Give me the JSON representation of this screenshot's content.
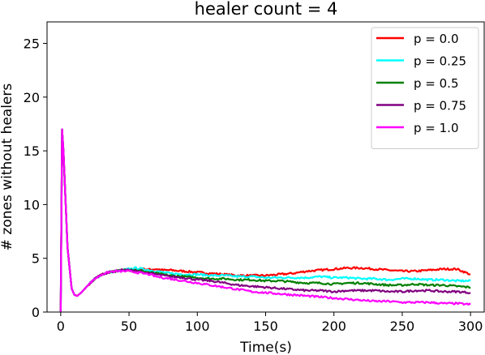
{
  "chart_data": {
    "type": "line",
    "title": "healer count = 4",
    "xlabel": "Time(s)",
    "ylabel": "# zones without healers",
    "xlim": [
      -10,
      310
    ],
    "ylim": [
      0,
      27
    ],
    "xticks": [
      "0",
      "50",
      "100",
      "150",
      "200",
      "250",
      "300"
    ],
    "yticks": [
      "0",
      "5",
      "10",
      "15",
      "20",
      "25"
    ],
    "grid": false,
    "legend_position": "top-right",
    "series": [
      {
        "name": "p = 0.0",
        "color": "#ff0000",
        "x": [
          0,
          1,
          2,
          5,
          8,
          10,
          12,
          15,
          20,
          25,
          30,
          35,
          40,
          45,
          50,
          55,
          60,
          65,
          70,
          75,
          80,
          90,
          100,
          110,
          120,
          130,
          140,
          150,
          160,
          170,
          180,
          190,
          200,
          210,
          220,
          230,
          240,
          250,
          260,
          270,
          280,
          290,
          300
        ],
        "values": [
          0,
          17,
          15,
          6,
          2.2,
          1.6,
          1.5,
          1.8,
          2.5,
          3.1,
          3.5,
          3.7,
          3.8,
          3.9,
          3.9,
          3.9,
          4.0,
          3.95,
          4.0,
          3.9,
          3.9,
          3.8,
          3.7,
          3.6,
          3.5,
          3.4,
          3.4,
          3.4,
          3.5,
          3.6,
          3.8,
          3.9,
          4.0,
          4.1,
          4.1,
          4.0,
          3.9,
          3.8,
          3.8,
          3.9,
          4.0,
          4.0,
          3.5
        ]
      },
      {
        "name": "p = 0.25",
        "color": "#00ffff",
        "x": [
          0,
          1,
          2,
          5,
          8,
          10,
          12,
          15,
          20,
          25,
          30,
          35,
          40,
          45,
          50,
          55,
          60,
          65,
          70,
          75,
          80,
          90,
          100,
          110,
          120,
          130,
          140,
          150,
          160,
          170,
          180,
          190,
          200,
          210,
          220,
          230,
          240,
          250,
          260,
          270,
          280,
          290,
          300
        ],
        "values": [
          0,
          17,
          15,
          6,
          2.2,
          1.6,
          1.5,
          1.8,
          2.5,
          3.1,
          3.5,
          3.7,
          3.8,
          3.9,
          4.0,
          4.1,
          4.0,
          3.9,
          3.8,
          3.7,
          3.6,
          3.5,
          3.5,
          3.4,
          3.4,
          3.3,
          3.3,
          3.2,
          3.2,
          3.2,
          3.2,
          3.3,
          3.2,
          3.2,
          3.1,
          3.1,
          3.0,
          3.1,
          3.1,
          3.0,
          3.0,
          2.9,
          2.9
        ]
      },
      {
        "name": "p = 0.5",
        "color": "#008000",
        "x": [
          0,
          1,
          2,
          5,
          8,
          10,
          12,
          15,
          20,
          25,
          30,
          35,
          40,
          45,
          50,
          55,
          60,
          65,
          70,
          75,
          80,
          90,
          100,
          110,
          120,
          130,
          140,
          150,
          160,
          170,
          180,
          190,
          200,
          210,
          220,
          230,
          240,
          250,
          260,
          270,
          280,
          290,
          300
        ],
        "values": [
          0,
          17,
          15,
          6,
          2.2,
          1.6,
          1.5,
          1.8,
          2.5,
          3.1,
          3.5,
          3.7,
          3.8,
          3.9,
          4.0,
          3.9,
          3.8,
          3.7,
          3.6,
          3.5,
          3.4,
          3.3,
          3.2,
          3.1,
          3.1,
          3.0,
          3.0,
          2.9,
          2.9,
          2.8,
          2.7,
          2.7,
          2.6,
          2.7,
          2.7,
          2.6,
          2.5,
          2.5,
          2.6,
          2.5,
          2.5,
          2.4,
          2.3
        ]
      },
      {
        "name": "p = 0.75",
        "color": "#800080",
        "x": [
          0,
          1,
          2,
          5,
          8,
          10,
          12,
          15,
          20,
          25,
          30,
          35,
          40,
          45,
          50,
          55,
          60,
          65,
          70,
          75,
          80,
          90,
          100,
          110,
          120,
          130,
          140,
          150,
          160,
          170,
          180,
          190,
          200,
          210,
          220,
          230,
          240,
          250,
          260,
          270,
          280,
          290,
          300
        ],
        "values": [
          0,
          17,
          15,
          6,
          2.2,
          1.6,
          1.5,
          1.8,
          2.5,
          3.1,
          3.5,
          3.7,
          3.8,
          3.9,
          3.9,
          3.8,
          3.7,
          3.6,
          3.5,
          3.4,
          3.3,
          3.2,
          3.0,
          2.9,
          2.7,
          2.5,
          2.4,
          2.3,
          2.2,
          2.1,
          2.0,
          2.0,
          1.9,
          2.0,
          2.0,
          2.0,
          1.9,
          1.9,
          2.0,
          2.0,
          1.9,
          1.9,
          1.8
        ]
      },
      {
        "name": "p = 1.0",
        "color": "#ff00ff",
        "x": [
          0,
          1,
          2,
          5,
          8,
          10,
          12,
          15,
          20,
          25,
          30,
          35,
          40,
          45,
          50,
          55,
          60,
          65,
          70,
          75,
          80,
          90,
          100,
          110,
          120,
          130,
          140,
          150,
          160,
          170,
          180,
          190,
          200,
          210,
          220,
          230,
          240,
          250,
          260,
          270,
          280,
          290,
          300
        ],
        "values": [
          0,
          17,
          15,
          6,
          2.2,
          1.6,
          1.5,
          1.8,
          2.5,
          3.1,
          3.5,
          3.7,
          3.8,
          3.8,
          3.8,
          3.7,
          3.6,
          3.5,
          3.3,
          3.2,
          3.1,
          2.9,
          2.7,
          2.5,
          2.3,
          2.1,
          1.9,
          1.8,
          1.7,
          1.6,
          1.5,
          1.4,
          1.3,
          1.2,
          1.1,
          1.0,
          1.0,
          0.9,
          0.9,
          0.9,
          0.8,
          0.8,
          0.7
        ]
      }
    ]
  }
}
